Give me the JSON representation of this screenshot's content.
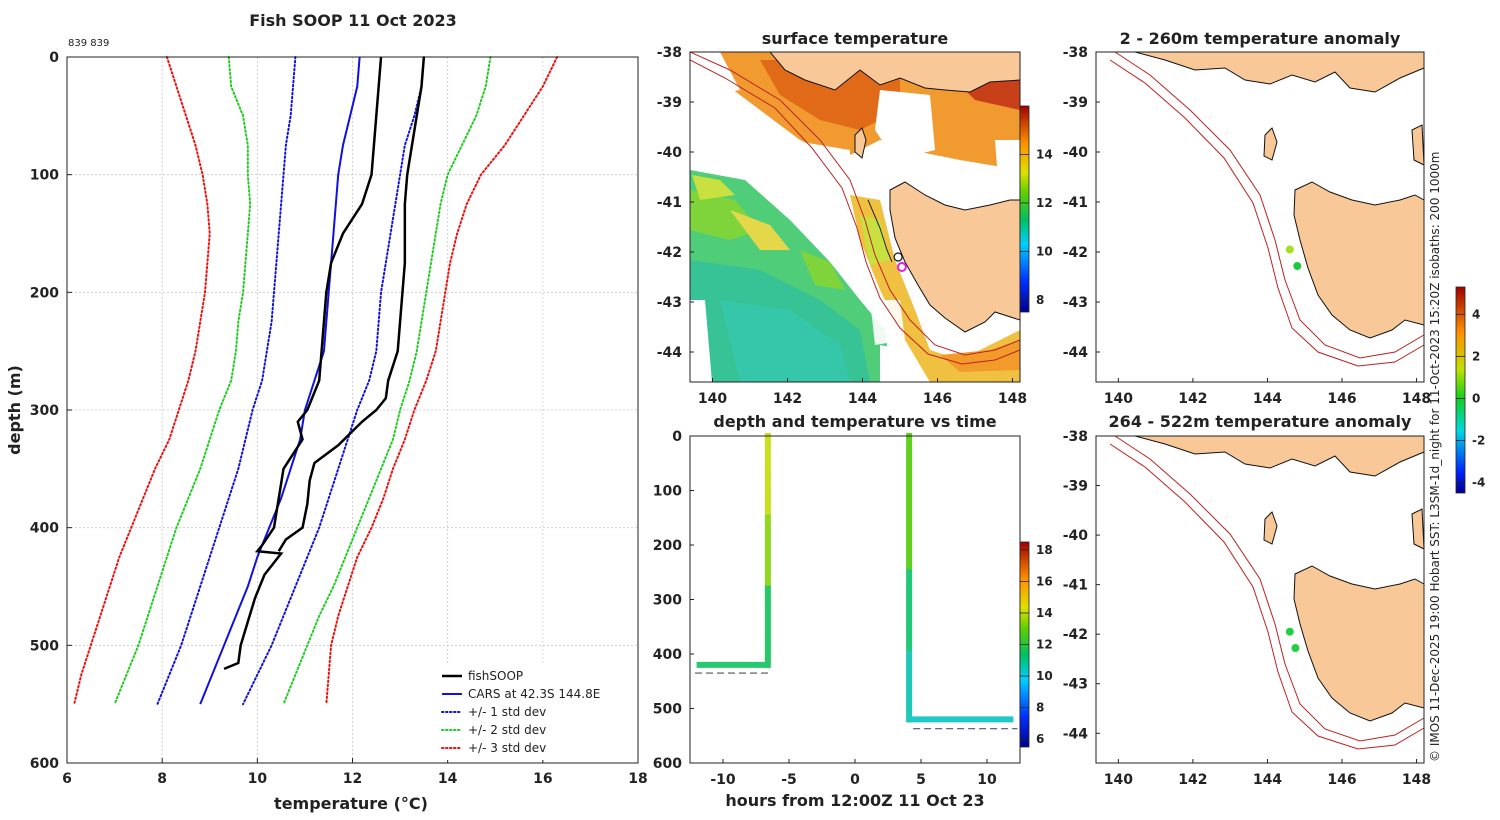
{
  "figure": {
    "credit": "© IMOS 11-Dec-2025 19:00 Hobart SST: L3SM-1d_night for 11-Oct-2023 15:20Z isobaths: 200  1000m"
  },
  "chart_data": [
    {
      "id": "profile",
      "type": "line",
      "title": "Fish SOOP 11 Oct 2023",
      "subtitle": "839 839",
      "xlabel": "temperature (°C)",
      "ylabel": "depth (m)",
      "xlim": [
        6,
        18
      ],
      "ylim": [
        600,
        0
      ],
      "xticks": [
        "6",
        "8",
        "10",
        "12",
        "14",
        "16",
        "18"
      ],
      "yticks": [
        "0",
        "100",
        "200",
        "300",
        "400",
        "500",
        "600"
      ],
      "grid": true,
      "legend_position": "bottom-right",
      "depth": [
        0,
        25,
        50,
        75,
        100,
        125,
        150,
        175,
        200,
        225,
        250,
        275,
        300,
        325,
        350,
        375,
        400,
        425,
        450,
        475,
        500,
        525,
        550
      ],
      "series": [
        {
          "name": "CARS at 42.3S 144.8E",
          "color": "#1010e0",
          "style": "solid",
          "values": [
            12.15,
            12.1,
            11.95,
            11.8,
            11.7,
            11.65,
            11.6,
            11.55,
            11.5,
            11.45,
            11.4,
            11.2,
            11.0,
            10.9,
            10.7,
            10.5,
            10.25,
            10.0,
            9.8,
            9.55,
            9.3,
            9.05,
            8.8
          ]
        },
        {
          "name": "+/- 1 std dev",
          "color": "#1010e0",
          "style": "dotted",
          "values": [
            10.8,
            10.75,
            10.7,
            10.6,
            10.55,
            10.5,
            10.45,
            10.4,
            10.35,
            10.3,
            10.2,
            10.1,
            9.9,
            9.75,
            9.6,
            9.4,
            9.2,
            9.0,
            8.8,
            8.6,
            8.4,
            8.15,
            7.9
          ]
        },
        {
          "name": "",
          "color": "#1010e0",
          "style": "dotted",
          "values": [
            13.5,
            13.45,
            13.3,
            13.1,
            13.0,
            12.9,
            12.8,
            12.7,
            12.6,
            12.55,
            12.5,
            12.35,
            12.1,
            11.9,
            11.7,
            11.5,
            11.3,
            11.05,
            10.8,
            10.55,
            10.3,
            10.0,
            9.7
          ]
        },
        {
          "name": "+/- 2 std dev",
          "color": "#22cc22",
          "style": "dotted",
          "values": [
            9.4,
            9.45,
            9.7,
            9.8,
            9.8,
            9.85,
            9.8,
            9.75,
            9.7,
            9.6,
            9.55,
            9.45,
            9.2,
            9.0,
            8.8,
            8.55,
            8.3,
            8.1,
            7.9,
            7.7,
            7.5,
            7.25,
            7.0
          ]
        },
        {
          "name": "",
          "color": "#22cc22",
          "style": "dotted",
          "values": [
            14.9,
            14.8,
            14.6,
            14.3,
            14.0,
            13.85,
            13.75,
            13.65,
            13.55,
            13.45,
            13.35,
            13.2,
            13.0,
            12.85,
            12.6,
            12.35,
            12.1,
            11.85,
            11.6,
            11.3,
            11.05,
            10.8,
            10.55
          ]
        },
        {
          "name": "+/- 3 std dev",
          "color": "#ee1111",
          "style": "dotted",
          "values": [
            8.1,
            8.3,
            8.5,
            8.7,
            8.85,
            8.95,
            9.0,
            8.95,
            8.9,
            8.8,
            8.7,
            8.55,
            8.35,
            8.15,
            7.85,
            7.6,
            7.35,
            7.1,
            6.9,
            6.7,
            6.5,
            6.3,
            6.15
          ]
        },
        {
          "name": "",
          "color": "#ee1111",
          "style": "dotted",
          "values": [
            16.3,
            16.0,
            15.6,
            15.2,
            14.7,
            14.4,
            14.2,
            14.05,
            13.95,
            13.85,
            13.75,
            13.55,
            13.3,
            13.1,
            12.85,
            12.65,
            12.4,
            12.1,
            11.9,
            11.7,
            11.55,
            11.5,
            11.45
          ]
        }
      ],
      "casts": [
        {
          "name": "fishSOOP",
          "color": "#000000",
          "depth": [
            0,
            25,
            50,
            75,
            100,
            125,
            150,
            175,
            200,
            225,
            250,
            275,
            300,
            310,
            325,
            350,
            375,
            400,
            415,
            420,
            422,
            440,
            460,
            480,
            500,
            515,
            520
          ],
          "temp": [
            12.6,
            12.55,
            12.5,
            12.45,
            12.4,
            12.2,
            11.8,
            11.55,
            11.45,
            11.4,
            11.35,
            11.3,
            11.05,
            10.85,
            10.95,
            10.55,
            10.45,
            10.35,
            10.1,
            10.0,
            10.5,
            10.15,
            9.95,
            9.8,
            9.65,
            9.6,
            9.3
          ]
        },
        {
          "name": "",
          "color": "#000000",
          "depth": [
            0,
            25,
            50,
            75,
            100,
            125,
            150,
            175,
            200,
            225,
            250,
            275,
            290,
            300,
            310,
            320,
            330,
            345,
            360,
            380,
            400,
            410,
            420
          ],
          "temp": [
            13.5,
            13.45,
            13.35,
            13.25,
            13.15,
            13.1,
            13.1,
            13.1,
            13.05,
            13.0,
            12.95,
            12.75,
            12.7,
            12.5,
            12.2,
            11.95,
            11.7,
            11.2,
            11.1,
            11.05,
            10.95,
            10.6,
            10.45
          ]
        }
      ],
      "legend": [
        "fishSOOP",
        "CARS at 42.3S 144.8E",
        "+/- 1 std dev",
        "+/- 2 std dev",
        "+/- 3 std dev"
      ]
    },
    {
      "id": "sst-map",
      "type": "heatmap",
      "title": "surface temperature",
      "xticks": [
        "140",
        "142",
        "144",
        "146",
        "148"
      ],
      "yticks": [
        "-38",
        "-39",
        "-40",
        "-41",
        "-42",
        "-43",
        "-44"
      ],
      "xlim": [
        139.4,
        148.2
      ],
      "ylim": [
        -44.6,
        -38.0
      ],
      "colorbar": {
        "range": [
          7.5,
          16
        ],
        "ticks": [
          "8",
          "10",
          "12",
          "14"
        ]
      },
      "tracks": [
        {
          "lon": 144.95,
          "lat": -42.1
        },
        {
          "lon": 145.05,
          "lat": -42.3
        }
      ]
    },
    {
      "id": "time-depth",
      "type": "scatter",
      "title": "depth and temperature vs time",
      "xlabel": "hours from 12:00Z 11 Oct 23",
      "xlim": [
        -12.5,
        12.5
      ],
      "ylim": [
        600,
        0
      ],
      "xticks": [
        "-10",
        "-5",
        "0",
        "5",
        "10"
      ],
      "yticks": [
        "0",
        "100",
        "200",
        "300",
        "400",
        "500",
        "600"
      ],
      "colorbar": {
        "range": [
          5.5,
          18.5
        ],
        "ticks": [
          "6",
          "8",
          "10",
          "12",
          "14",
          "16",
          "18"
        ]
      },
      "casts": [
        {
          "down_time": -6.6,
          "max_depth": 420,
          "bottom_end": -12.0,
          "bottom_line": 435,
          "bottom_line_end": -6.5
        },
        {
          "down_time": 4.1,
          "max_depth": 520,
          "bottom_end": 12.0,
          "bottom_line": 537,
          "bottom_line_end": 12.3
        }
      ]
    },
    {
      "id": "anom-shallow",
      "type": "heatmap",
      "title": "2 - 260m temperature anomaly",
      "xticks": [
        "140",
        "142",
        "144",
        "146",
        "148"
      ],
      "yticks": [
        "-38",
        "-39",
        "-40",
        "-41",
        "-42",
        "-43",
        "-44"
      ],
      "xlim": [
        139.4,
        148.2
      ],
      "ylim": [
        -44.6,
        -38.0
      ],
      "points": [
        {
          "lon": 144.6,
          "lat": -41.95,
          "value": 1.0
        },
        {
          "lon": 144.8,
          "lat": -42.28,
          "value": 0.4
        }
      ]
    },
    {
      "id": "anom-deep",
      "type": "heatmap",
      "title": "264 - 522m temperature anomaly",
      "xticks": [
        "140",
        "142",
        "144",
        "146",
        "148"
      ],
      "yticks": [
        "-38",
        "-39",
        "-40",
        "-41",
        "-42",
        "-43",
        "-44"
      ],
      "xlim": [
        139.4,
        148.2
      ],
      "ylim": [
        -44.6,
        -38.0
      ],
      "points": [
        {
          "lon": 144.6,
          "lat": -41.95,
          "value": 0.5
        },
        {
          "lon": 144.75,
          "lat": -42.28,
          "value": 0.5
        }
      ]
    },
    {
      "id": "anom-colorbar",
      "type": "heatmap",
      "colorbar": {
        "range": [
          -4.5,
          5.3
        ],
        "ticks": [
          "4",
          "2",
          "0",
          "-2",
          "-4"
        ]
      }
    }
  ]
}
